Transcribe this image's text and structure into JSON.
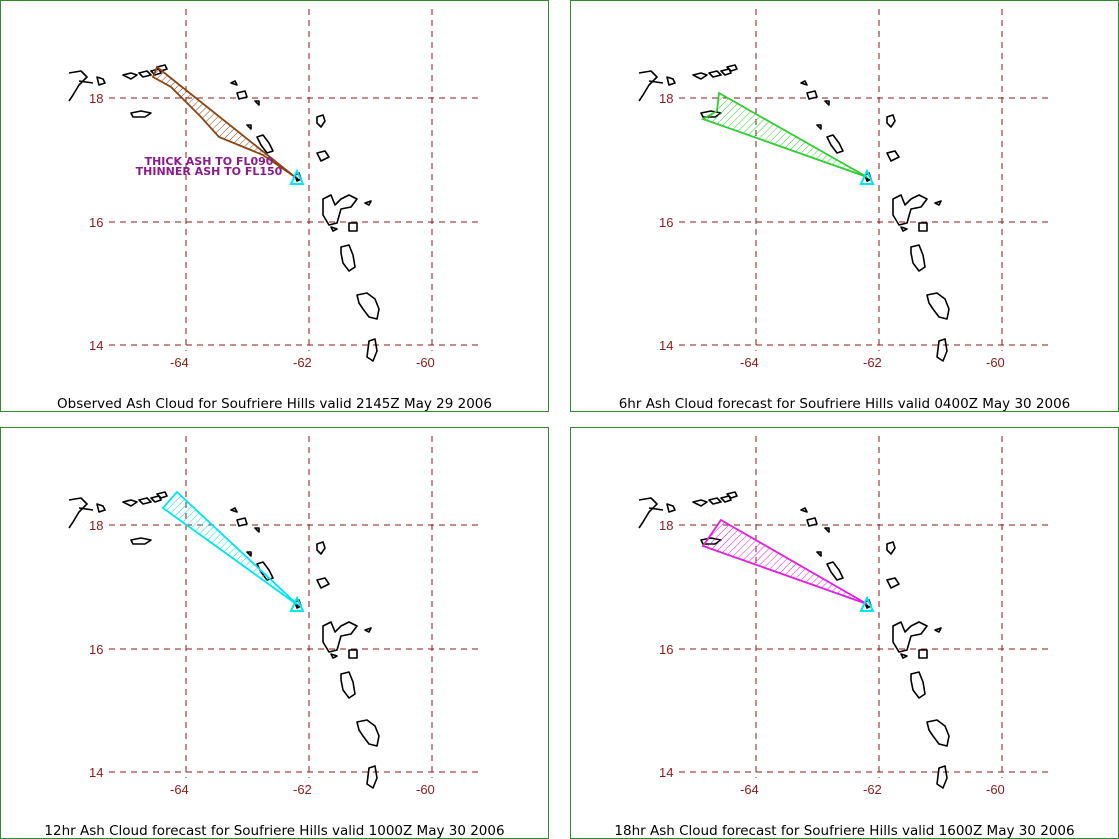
{
  "colors": {
    "frame": "#2e8b2e",
    "grid": "#8b1a1a",
    "coast": "#000000",
    "annotation": "#8b1a8b",
    "volcano_marker": "#00e5ee"
  },
  "axes": {
    "lat_labels": [
      "18",
      "16",
      "14"
    ],
    "lon_labels": [
      "-64",
      "-62",
      "-60"
    ]
  },
  "icons": {
    "volcano": "triangle-icon"
  },
  "panels": [
    {
      "caption": "Observed Ash Cloud for Soufriere  Hills valid 2145Z May 29 2006",
      "cloud_color": "#8b4513",
      "annotations": [
        "THICK ASH TO FL090",
        "THINNER ASH TO FL150"
      ]
    },
    {
      "caption": "6hr Ash Cloud forecast for Soufriere  Hills valid 0400Z May 30 2006",
      "cloud_color": "#32cd32",
      "annotations": []
    },
    {
      "caption": "12hr Ash Cloud forecast for Soufriere  Hills valid 1000Z May 30 2006",
      "cloud_color": "#00e5ee",
      "annotations": []
    },
    {
      "caption": "18hr Ash Cloud forecast for Soufriere  Hills valid 1600Z May 30 2006",
      "cloud_color": "#e020e0",
      "annotations": []
    }
  ]
}
